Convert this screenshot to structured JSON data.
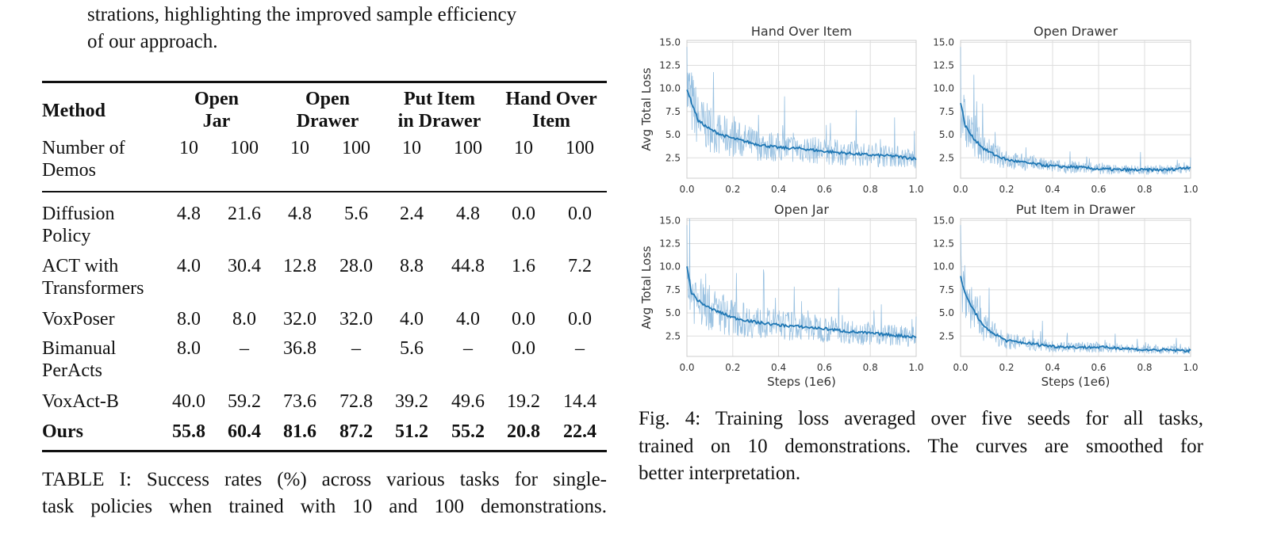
{
  "paragraph": {
    "lines": [
      "strations, highlighting the improved sample efficiency",
      "of our approach."
    ]
  },
  "table": {
    "method_header": "Method",
    "task_headers": [
      [
        "Open",
        "Jar"
      ],
      [
        "Open",
        "Drawer"
      ],
      [
        "Put Item",
        "in Drawer"
      ],
      [
        "Hand Over",
        "Item"
      ]
    ],
    "demos_label": [
      "Number of",
      "Demos"
    ],
    "demo_counts": [
      "10",
      "100",
      "10",
      "100",
      "10",
      "100",
      "10",
      "100"
    ],
    "rows": [
      {
        "method": [
          "Diffusion",
          "Policy"
        ],
        "values": [
          "4.8",
          "21.6",
          "4.8",
          "5.6",
          "2.4",
          "4.8",
          "0.0",
          "0.0"
        ],
        "bold": false
      },
      {
        "method": [
          "ACT with",
          "Transformers"
        ],
        "values": [
          "4.0",
          "30.4",
          "12.8",
          "28.0",
          "8.8",
          "44.8",
          "1.6",
          "7.2"
        ],
        "bold": false
      },
      {
        "method": [
          "VoxPoser"
        ],
        "values": [
          "8.0",
          "8.0",
          "32.0",
          "32.0",
          "4.0",
          "4.0",
          "0.0",
          "0.0"
        ],
        "bold": false
      },
      {
        "method": [
          "Bimanual",
          "PerActs"
        ],
        "values": [
          "8.0",
          "–",
          "36.8",
          "–",
          "5.6",
          "–",
          "0.0",
          "–"
        ],
        "bold": false
      },
      {
        "method": [
          "VoxAct-B"
        ],
        "values": [
          "40.0",
          "59.2",
          "73.6",
          "72.8",
          "39.2",
          "49.6",
          "19.2",
          "14.4"
        ],
        "bold": false
      },
      {
        "method": [
          "Ours"
        ],
        "values": [
          "55.8",
          "60.4",
          "81.6",
          "87.2",
          "51.2",
          "55.2",
          "20.8",
          "22.4"
        ],
        "bold": true
      }
    ],
    "caption": [
      "TABLE I: Success rates (%) across various tasks for single-",
      "task policies when trained with 10 and 100 demonstrations."
    ]
  },
  "figure_caption": [
    "Fig. 4: Training loss averaged over five seeds for all tasks,",
    "trained on 10 demonstrations. The curves are smoothed for",
    "better interpretation."
  ],
  "colors": {
    "line": "#1f77b4",
    "raw": "#7fb2da",
    "grid": "#dddddd",
    "text": "#333333"
  },
  "chart_data": [
    {
      "type": "line",
      "title": "Hand Over Item",
      "xlabel": "",
      "ylabel": "Avg Total Loss",
      "xlim": [
        0,
        1
      ],
      "ylim": [
        0.3,
        15.2
      ],
      "grid": true,
      "xticks": [
        "0.0",
        "0.2",
        "0.4",
        "0.6",
        "0.8",
        "1.0"
      ],
      "yticks": [
        "2.5",
        "5.0",
        "7.5",
        "10.0",
        "12.5",
        "15.0"
      ],
      "x": [
        0,
        0.02,
        0.05,
        0.1,
        0.15,
        0.2,
        0.3,
        0.4,
        0.5,
        0.6,
        0.7,
        0.8,
        0.9,
        1.0
      ],
      "series": [
        {
          "values": [
            10,
            8.5,
            6.5,
            5.6,
            5.0,
            4.6,
            4.0,
            3.6,
            3.5,
            3.2,
            3.0,
            2.8,
            2.7,
            2.4
          ]
        }
      ]
    },
    {
      "type": "line",
      "title": "Open Drawer",
      "xlabel": "",
      "ylabel": "",
      "xlim": [
        0,
        1
      ],
      "ylim": [
        0.3,
        15.2
      ],
      "grid": true,
      "xticks": [
        "0.0",
        "0.2",
        "0.4",
        "0.6",
        "0.8",
        "1.0"
      ],
      "yticks": [
        "2.5",
        "5.0",
        "7.5",
        "10.0",
        "12.5",
        "15.0"
      ],
      "x": [
        0,
        0.02,
        0.05,
        0.1,
        0.15,
        0.2,
        0.3,
        0.4,
        0.5,
        0.6,
        0.7,
        0.8,
        0.9,
        1.0
      ],
      "series": [
        {
          "values": [
            8.5,
            6.0,
            4.8,
            3.5,
            2.8,
            2.3,
            1.9,
            1.6,
            1.5,
            1.3,
            1.2,
            1.2,
            1.2,
            1.5
          ]
        }
      ]
    },
    {
      "type": "line",
      "title": "Open Jar",
      "xlabel": "Steps (1e6)",
      "ylabel": "Avg Total Loss",
      "xlim": [
        0,
        1
      ],
      "ylim": [
        0.3,
        15.2
      ],
      "grid": true,
      "xticks": [
        "0.0",
        "0.2",
        "0.4",
        "0.6",
        "0.8",
        "1.0"
      ],
      "yticks": [
        "2.5",
        "5.0",
        "7.5",
        "10.0",
        "12.5",
        "15.0"
      ],
      "x": [
        0,
        0.02,
        0.05,
        0.1,
        0.15,
        0.2,
        0.3,
        0.4,
        0.5,
        0.6,
        0.7,
        0.8,
        0.9,
        1.0
      ],
      "series": [
        {
          "values": [
            10,
            7.2,
            6.3,
            5.5,
            5.0,
            4.5,
            4.0,
            3.7,
            3.5,
            3.3,
            3.0,
            2.8,
            2.6,
            2.4
          ]
        }
      ]
    },
    {
      "type": "line",
      "title": "Put Item in Drawer",
      "xlabel": "Steps (1e6)",
      "ylabel": "",
      "xlim": [
        0,
        1
      ],
      "ylim": [
        0.3,
        15.2
      ],
      "grid": true,
      "xticks": [
        "0.0",
        "0.2",
        "0.4",
        "0.6",
        "0.8",
        "1.0"
      ],
      "yticks": [
        "2.5",
        "5.0",
        "7.5",
        "10.0",
        "12.5",
        "15.0"
      ],
      "x": [
        0,
        0.02,
        0.05,
        0.1,
        0.15,
        0.2,
        0.3,
        0.4,
        0.5,
        0.6,
        0.7,
        0.8,
        0.9,
        1.0
      ],
      "series": [
        {
          "values": [
            9.0,
            7.0,
            5.6,
            3.5,
            2.7,
            2.0,
            1.7,
            1.4,
            1.3,
            1.3,
            1.2,
            1.0,
            1.0,
            0.9
          ]
        }
      ]
    }
  ]
}
